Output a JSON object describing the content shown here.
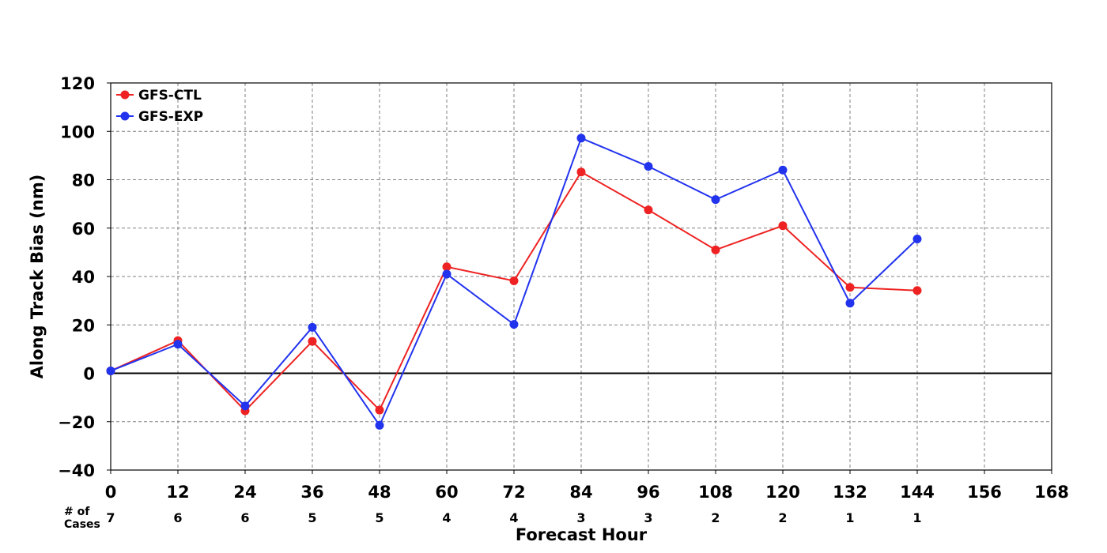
{
  "chart_data": {
    "type": "line",
    "xlabel": "Forecast Hour",
    "ylabel": "Along Track Bias (nm)",
    "xlim": [
      0,
      168
    ],
    "ylim": [
      -40,
      120
    ],
    "x_ticks": [
      0,
      12,
      24,
      36,
      48,
      60,
      72,
      84,
      96,
      108,
      120,
      132,
      144,
      156,
      168
    ],
    "y_ticks": [
      -40,
      -20,
      0,
      20,
      40,
      60,
      80,
      100,
      120
    ],
    "y_tick_labels": [
      "−40",
      "−20",
      "0",
      "20",
      "40",
      "60",
      "80",
      "100",
      "120"
    ],
    "grid": true,
    "zero_line": true,
    "legend_position": "top-left",
    "x": [
      0,
      12,
      24,
      36,
      48,
      60,
      72,
      84,
      96,
      108,
      120,
      132,
      144
    ],
    "series": [
      {
        "name": "GFS-CTL",
        "color": "#ee2222",
        "values": [
          1,
          13.5,
          -15.5,
          13.2,
          -15.2,
          44,
          38.2,
          83.2,
          67.5,
          51,
          61,
          35.5,
          34.2
        ]
      },
      {
        "name": "GFS-EXP",
        "color": "#2233ee",
        "values": [
          1,
          12,
          -13.5,
          19,
          -21.5,
          41,
          20.2,
          97.2,
          85.5,
          71.8,
          84,
          29,
          55.5
        ]
      }
    ],
    "cases_label_line1": "# of",
    "cases_label_line2": "Cases",
    "cases": [
      "7",
      "6",
      "6",
      "5",
      "5",
      "4",
      "4",
      "3",
      "3",
      "2",
      "2",
      "1",
      "1"
    ]
  }
}
